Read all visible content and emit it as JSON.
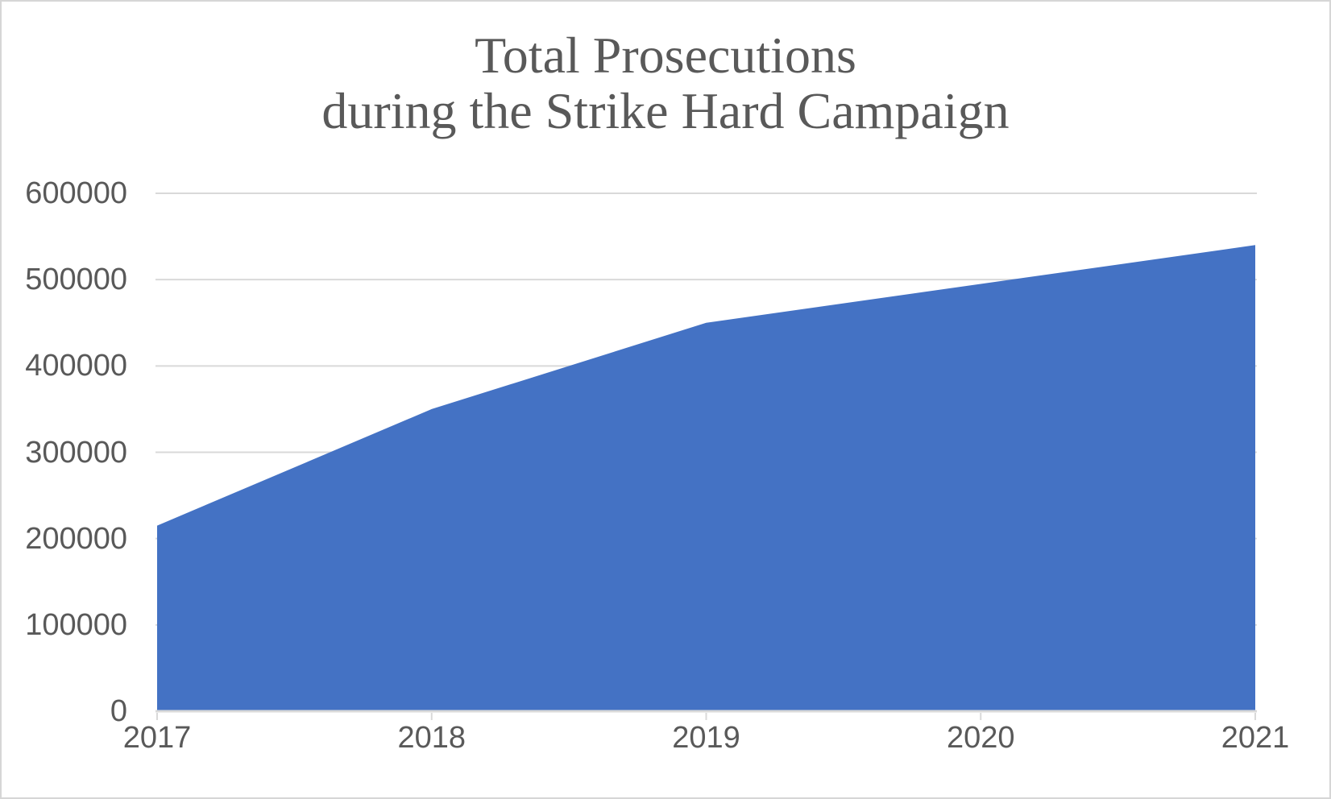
{
  "chart_data": {
    "type": "area",
    "title": "Total Prosecutions during the Strike Hard Campaign",
    "title_lines": [
      "Total Prosecutions",
      "during the Strike Hard Campaign"
    ],
    "categories": [
      "2017",
      "2018",
      "2019",
      "2020",
      "2021"
    ],
    "series": [
      {
        "name": "Total Prosecutions",
        "values": [
          215000,
          350000,
          450000,
          495000,
          540000
        ]
      }
    ],
    "xlabel": "",
    "ylabel": "",
    "ylim": [
      0,
      600000
    ],
    "ytick_interval": 100000,
    "ytick_labels": [
      "0",
      "100000",
      "200000",
      "300000",
      "400000",
      "500000",
      "600000"
    ],
    "grid": true,
    "legend": "none",
    "colors": {
      "area_fill": "#4472C4",
      "gridline": "#D9D9D9",
      "axis_line": "#D9D9D9",
      "tick_mark": "#D9D9D9",
      "axis_text": "#595959",
      "title_text": "#595959"
    }
  }
}
